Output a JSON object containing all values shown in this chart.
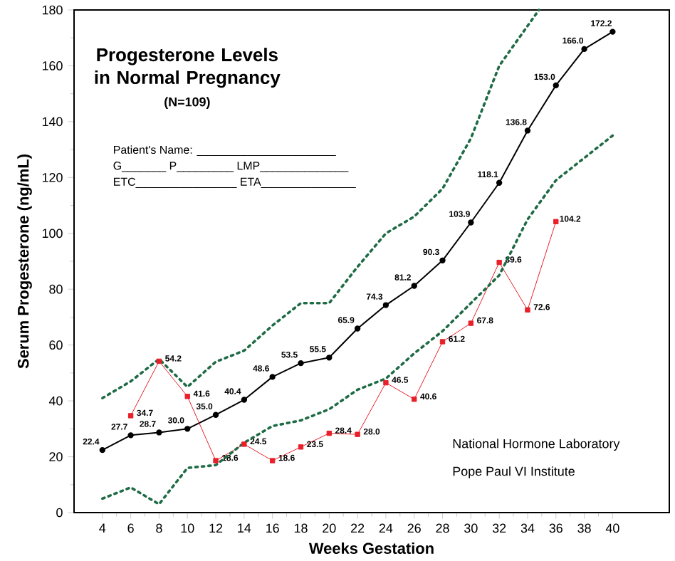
{
  "chart_data": {
    "type": "line",
    "title": "Progesterone Levels in Normal Pregnancy",
    "subtitle": "(N=109)",
    "xlabel": "Weeks Gestation",
    "ylabel": "Serum Progesterone (ng/mL)",
    "xlim": [
      2,
      44
    ],
    "xticks": [
      4,
      6,
      8,
      10,
      12,
      14,
      16,
      18,
      20,
      22,
      24,
      26,
      28,
      30,
      32,
      34,
      36,
      38,
      40
    ],
    "ylim": [
      0,
      180
    ],
    "yticks": [
      0,
      20,
      40,
      60,
      80,
      100,
      120,
      140,
      160,
      180
    ],
    "grid": false,
    "series": [
      {
        "color": "#000000",
        "marker": "circle",
        "line_style": "solid",
        "x": [
          4,
          6,
          8,
          10,
          12,
          14,
          16,
          18,
          20,
          22,
          24,
          26,
          28,
          30,
          32,
          34,
          36,
          38,
          40
        ],
        "values": [
          22.4,
          27.7,
          28.7,
          30.0,
          35.0,
          40.4,
          48.6,
          53.5,
          55.5,
          65.9,
          74.3,
          81.2,
          90.3,
          103.9,
          118.1,
          136.8,
          153.0,
          166.0,
          172.2
        ],
        "value_labels": [
          "22.4",
          "27.7",
          "28.7",
          "30.0",
          "35.0",
          "40.4",
          "48.6",
          "53.5",
          "55.5",
          "65.9",
          "74.3",
          "81.2",
          "90.3",
          "103.9",
          "118.1",
          "136.8",
          "153.0",
          "166.0",
          "172.2"
        ]
      },
      {
        "color": "#e8202a",
        "marker": "square",
        "line_style": "solid",
        "x": [
          6,
          8,
          10,
          12,
          14,
          16,
          18,
          20,
          22,
          24,
          26,
          28,
          30,
          32,
          34,
          36
        ],
        "values": [
          34.7,
          54.2,
          41.6,
          18.6,
          24.5,
          18.6,
          23.5,
          28.4,
          28.0,
          46.5,
          40.6,
          61.2,
          67.8,
          89.6,
          72.6,
          104.2
        ],
        "value_labels": [
          "34.7",
          "54.2",
          "41.6",
          "18.6",
          "24.5",
          "18.6",
          "23.5",
          "28.4",
          "28.0",
          "46.5",
          "40.6",
          "61.2",
          "67.8",
          "89.6",
          "72.6",
          "104.2"
        ]
      },
      {
        "color": "#1f6b45",
        "marker": "none",
        "line_style": "dotted",
        "x": [
          4,
          6,
          8,
          10,
          12,
          14,
          16,
          18,
          20,
          22,
          24,
          26,
          28,
          30,
          32,
          34.8
        ],
        "values": [
          41,
          47,
          55,
          45,
          54,
          58,
          67,
          75,
          75,
          88,
          100,
          106,
          116,
          134,
          160,
          180
        ]
      },
      {
        "color": "#1f6b45",
        "marker": "none",
        "line_style": "dotted",
        "x": [
          4,
          6,
          8,
          10,
          12,
          14,
          16,
          18,
          20,
          22,
          24,
          26,
          28,
          30,
          32,
          34,
          36,
          38,
          40
        ],
        "values": [
          5,
          9,
          3,
          16,
          17,
          25,
          31,
          33,
          37,
          44,
          48,
          57,
          65,
          75,
          85,
          105,
          119,
          127,
          135
        ]
      }
    ],
    "annotations": [
      "Patient's Name: ______________________",
      "G_______ P_________ LMP______________",
      "ETC________________ ETA_______________",
      "National Hormone Laboratory",
      "Pope Paul VI Institute"
    ]
  }
}
